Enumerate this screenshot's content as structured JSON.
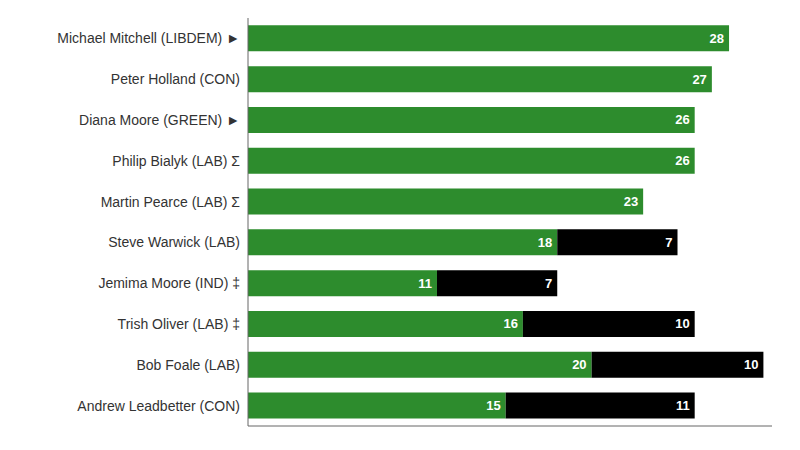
{
  "chart_data": {
    "type": "bar",
    "orientation": "horizontal",
    "stacked": true,
    "categories": [
      "Andrew Leadbetter (CON)",
      "Bob Foale (LAB)",
      "Trish Oliver (LAB) ‡",
      "Jemima Moore (IND) ‡",
      "Steve Warwick (LAB)",
      "Martin Pearce (LAB) Σ",
      "Philip Bialyk (LAB) Σ",
      "Diana Moore (GREEN) ►",
      "Peter Holland (CON)",
      "Michael Mitchell (LIBDEM) ►"
    ],
    "series": [
      {
        "color": "#2d8c2d",
        "values": [
          15,
          20,
          16,
          11,
          18,
          23,
          26,
          26,
          27,
          28
        ]
      },
      {
        "color": "#000000",
        "values": [
          11,
          10,
          10,
          7,
          7,
          0,
          0,
          0,
          0,
          0
        ]
      }
    ],
    "xlim": [
      0,
      30.5
    ],
    "xticks": [],
    "grid": false,
    "data_labels": true,
    "tick_labels": "y"
  }
}
